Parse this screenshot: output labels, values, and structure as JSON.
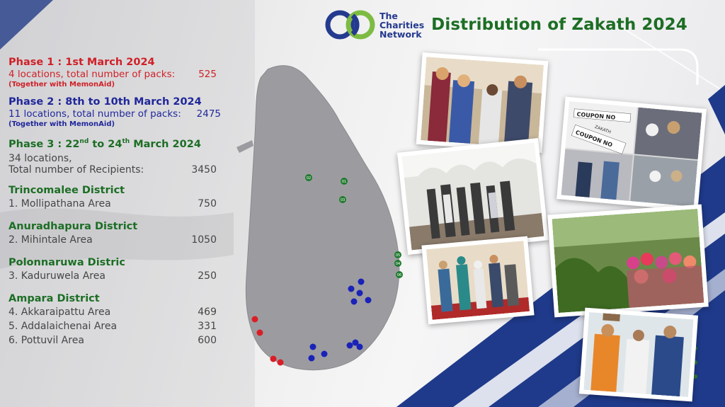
{
  "header": {
    "logo_line1": "The",
    "logo_line2": "Charities",
    "logo_line3": "Network",
    "title": "Distribution of Zakath 2024"
  },
  "phases": [
    {
      "title": "Phase 1 : 1st March 2024",
      "row_label": "4 locations, total number of packs:",
      "row_value": "525",
      "sub": "(Together with MemonAid)",
      "color": "#cf2127"
    },
    {
      "title": "Phase 2 : 8th to 10th March 2024",
      "row_label": "11 locations, total number of packs:",
      "row_value": "2475",
      "sub": "(Together with MemonAid)",
      "color": "#20279a"
    }
  ],
  "phase3": {
    "title_a": "Phase 3 : 22",
    "title_sup_a": "nd",
    "title_b": " to 24",
    "title_sup_b": "th",
    "title_c": " March 2024",
    "line1": "34 locations,",
    "row_label": "Total number of Recipients:",
    "row_value": "3450"
  },
  "districts": [
    {
      "name": "Trincomalee District",
      "areas": [
        {
          "label": "1. Mollipathana Area",
          "value": "750"
        }
      ]
    },
    {
      "name": "Anuradhapura District",
      "areas": [
        {
          "label": "2. Mihintale Area",
          "value": "1050"
        }
      ]
    },
    {
      "name": "Polonnaruwa Distric",
      "areas": [
        {
          "label": "3. Kaduruwela Area",
          "value": "250"
        }
      ]
    },
    {
      "name": "Ampara District",
      "areas": [
        {
          "label": "4. Akkaraipattu Area",
          "value": "469"
        },
        {
          "label": "5. Addalaichenai Area",
          "value": "331"
        },
        {
          "label": "6. Pottuvil Area",
          "value": "600"
        }
      ]
    }
  ],
  "map_markers": [
    "01",
    "02",
    "03",
    "04",
    "05",
    "06"
  ],
  "photo_texts": {
    "coupon_1": "COUPON NO",
    "coupon_2": "COUPON NO",
    "coupon_3": "ZAKATH"
  },
  "colors": {
    "brand_blue": "#243a8f",
    "brand_green": "#1c6e24",
    "phase1_red": "#cf2127",
    "phase2_blue": "#20279a",
    "map_grey": "#9c9ca0"
  }
}
